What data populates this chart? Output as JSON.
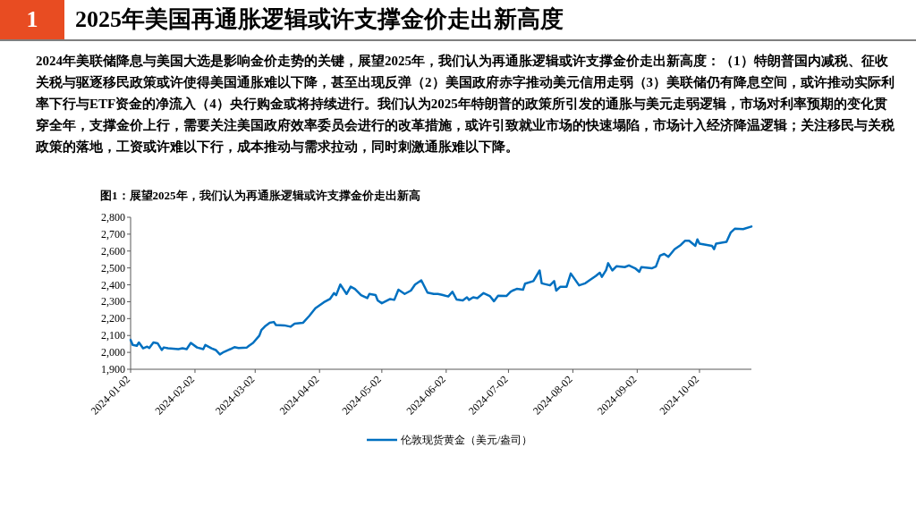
{
  "chart_data": {
    "type": "line",
    "title": "2025年美国再通胀逻辑或许支撑金价走出新高度",
    "subtitle": "2024年美联储降息与美国大选是影响金价走势的关键，展望2025年，我们认为再通胀逻辑或许支撑金价走出新高度：（1）特朗普国内减税、征收关税与驱逐移民政策或许使得美国通胀难以下降，甚至出现反弹（2）美国政府赤字推动美元信用走弱（3）美联储仍有降息空间，或许推动实际利率下行与ETF资金的净流入（4）央行购金或将持续进行。我们认为2025年特朗普的政策所引发的通胀与美元走弱逻辑，市场对利率预期的变化贯穿全年，支撑金价上行，需要关注美国政府效率委员会进行的改革措施，或许引致就业市场的快速塌陷，市场计入经济降温逻辑；关注移民与关税政策的落地，工资或许难以下行，成本推动与需求拉动，同时刺激通胀难以下降。",
    "annotations": [
      "1",
      "图1：展望2025年，我们认为再通胀逻辑或许支撑金价走出新高"
    ],
    "legend": "bottom",
    "xlim": [
      "2024-01-02",
      "2024-10-27"
    ],
    "xticks": [
      "2024-01-02",
      "2024-02-02",
      "2024-03-02",
      "2024-04-02",
      "2024-05-02",
      "2024-06-02",
      "2024-07-02",
      "2024-08-02",
      "2024-09-02",
      "2024-10-02"
    ],
    "ylim": [
      1900,
      2800
    ],
    "yticks": [
      {
        "value": 1900,
        "label": "1,900"
      },
      {
        "value": 2000,
        "label": "2,000"
      },
      {
        "value": 2100,
        "label": "2,100"
      },
      {
        "value": 2200,
        "label": "2,200"
      },
      {
        "value": 2300,
        "label": "2,300"
      },
      {
        "value": 2400,
        "label": "2,400"
      },
      {
        "value": 2500,
        "label": "2,500"
      },
      {
        "value": 2600,
        "label": "2,600"
      },
      {
        "value": 2700,
        "label": "2,700"
      },
      {
        "value": 2800,
        "label": "2,800"
      }
    ],
    "series": [
      {
        "name": "伦敦现货黄金（美元/盎司）",
        "color": "#0070c0",
        "x": [
          "2024-01-02",
          "2024-01-03",
          "2024-01-05",
          "2024-01-06",
          "2024-01-08",
          "2024-01-10",
          "2024-01-11",
          "2024-01-13",
          "2024-01-15",
          "2024-01-17",
          "2024-01-18",
          "2024-01-20",
          "2024-01-25",
          "2024-01-27",
          "2024-01-29",
          "2024-01-31",
          "2024-02-03",
          "2024-02-06",
          "2024-02-07",
          "2024-02-10",
          "2024-02-12",
          "2024-02-14",
          "2024-02-16",
          "2024-02-19",
          "2024-02-21",
          "2024-02-23",
          "2024-02-27",
          "2024-02-28",
          "2024-03-01",
          "2024-03-04",
          "2024-03-05",
          "2024-03-07",
          "2024-03-09",
          "2024-03-11",
          "2024-03-12",
          "2024-03-16",
          "2024-03-19",
          "2024-03-21",
          "2024-03-25",
          "2024-03-28",
          "2024-03-31",
          "2024-04-04",
          "2024-04-07",
          "2024-04-09",
          "2024-04-10",
          "2024-04-12",
          "2024-04-15",
          "2024-04-17",
          "2024-04-19",
          "2024-04-22",
          "2024-04-25",
          "2024-04-26",
          "2024-04-29",
          "2024-04-30",
          "2024-05-02",
          "2024-05-06",
          "2024-05-08",
          "2024-05-10",
          "2024-05-13",
          "2024-05-16",
          "2024-05-18",
          "2024-05-21",
          "2024-05-24",
          "2024-05-27",
          "2024-05-29",
          "2024-05-31",
          "2024-06-03",
          "2024-06-05",
          "2024-06-07",
          "2024-06-10",
          "2024-06-12",
          "2024-06-13",
          "2024-06-15",
          "2024-06-17",
          "2024-06-20",
          "2024-06-23",
          "2024-06-25",
          "2024-06-27",
          "2024-07-01",
          "2024-07-03",
          "2024-07-04",
          "2024-07-06",
          "2024-07-09",
          "2024-07-10",
          "2024-07-14",
          "2024-07-17",
          "2024-07-18",
          "2024-07-22",
          "2024-07-24",
          "2024-07-25",
          "2024-07-27",
          "2024-07-30",
          "2024-08-01",
          "2024-08-05",
          "2024-08-08",
          "2024-08-10",
          "2024-08-13",
          "2024-08-15",
          "2024-08-16",
          "2024-08-18",
          "2024-08-19",
          "2024-08-21",
          "2024-08-23",
          "2024-08-27",
          "2024-08-29",
          "2024-09-01",
          "2024-09-03",
          "2024-09-04",
          "2024-09-09",
          "2024-09-11",
          "2024-09-13",
          "2024-09-15",
          "2024-09-17",
          "2024-09-20",
          "2024-09-23",
          "2024-09-25",
          "2024-09-27",
          "2024-09-30",
          "2024-10-01",
          "2024-10-02",
          "2024-10-08",
          "2024-10-09",
          "2024-10-10",
          "2024-10-15",
          "2024-10-17",
          "2024-10-19",
          "2024-10-23",
          "2024-10-27"
        ],
        "values": [
          2074,
          2044,
          2039,
          2059,
          2024,
          2034,
          2026,
          2059,
          2054,
          2014,
          2029,
          2024,
          2019,
          2024,
          2019,
          2056,
          2029,
          2019,
          2044,
          2024,
          2014,
          1988,
          2003,
          2019,
          2031,
          2026,
          2029,
          2039,
          2056,
          2099,
          2132,
          2157,
          2175,
          2180,
          2162,
          2160,
          2152,
          2170,
          2175,
          2215,
          2261,
          2296,
          2316,
          2351,
          2339,
          2402,
          2346,
          2389,
          2376,
          2339,
          2321,
          2346,
          2339,
          2308,
          2291,
          2316,
          2311,
          2371,
          2346,
          2366,
          2402,
          2427,
          2354,
          2346,
          2346,
          2341,
          2331,
          2359,
          2313,
          2308,
          2326,
          2311,
          2326,
          2321,
          2351,
          2334,
          2303,
          2336,
          2334,
          2359,
          2366,
          2376,
          2371,
          2407,
          2422,
          2485,
          2409,
          2397,
          2422,
          2366,
          2389,
          2389,
          2467,
          2397,
          2409,
          2427,
          2452,
          2472,
          2447,
          2487,
          2528,
          2485,
          2510,
          2505,
          2515,
          2498,
          2477,
          2505,
          2498,
          2508,
          2573,
          2583,
          2566,
          2611,
          2636,
          2661,
          2661,
          2631,
          2669,
          2644,
          2631,
          2611,
          2644,
          2654,
          2709,
          2732,
          2730,
          2745
        ]
      }
    ]
  }
}
